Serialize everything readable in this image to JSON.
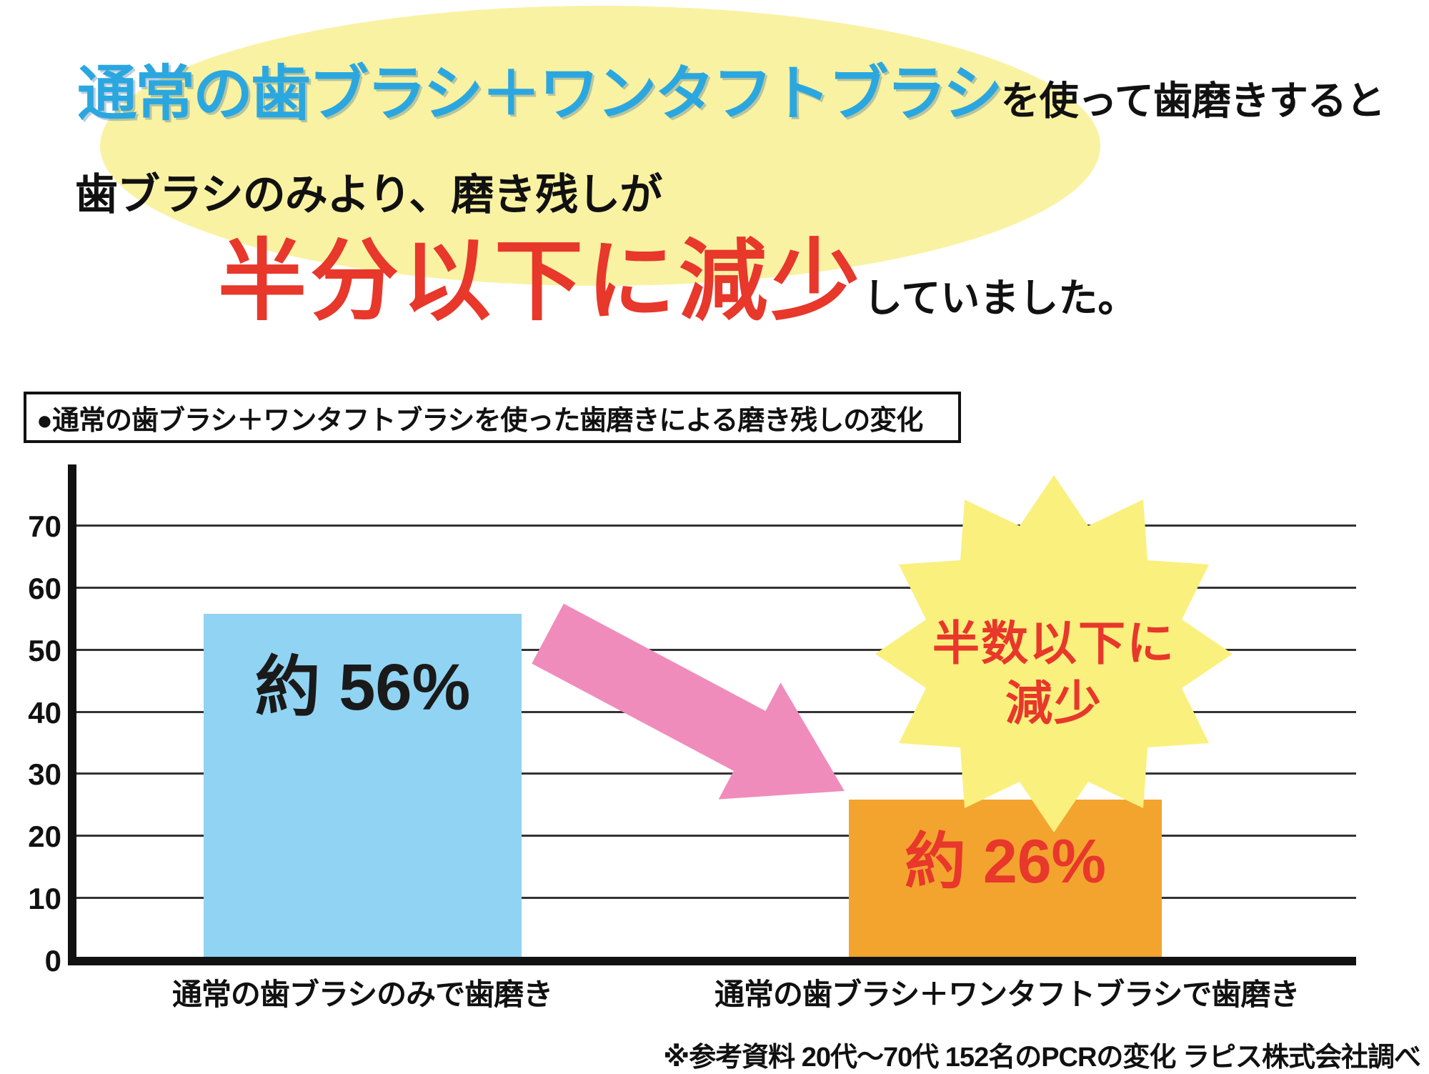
{
  "headline": {
    "line1_blue": "通常の歯ブラシ＋ワンタフトブラシ",
    "line1_black": "を使って歯磨きすると",
    "line2": "歯ブラシのみより、磨き残しが",
    "line3_red": "半分以下に減少",
    "line3_black": "していました。"
  },
  "chart_title": "●通常の歯ブラシ＋ワンタフトブラシを使った歯磨きによる磨き残しの変化",
  "chart_data": {
    "type": "bar",
    "title": "●通常の歯ブラシ＋ワンタフトブラシを使った歯磨きによる磨き残しの変化",
    "categories": [
      "通常の歯ブラシのみで歯磨き",
      "通常の歯ブラシ＋ワンタフトブラシで歯磨き"
    ],
    "values": [
      56,
      26
    ],
    "bar_labels": [
      "約 56%",
      "約 26%"
    ],
    "bar_colors": [
      "#91d3f2",
      "#f2a42f"
    ],
    "bar_label_colors": [
      "#1a1a1a",
      "#e8372b"
    ],
    "yticks": [
      0,
      10,
      20,
      30,
      40,
      50,
      60,
      70
    ],
    "ylim": [
      0,
      80
    ],
    "grid": true,
    "legend": "none",
    "annotation": {
      "line1": "半数以下に",
      "line2": "減少"
    }
  },
  "footnote": "※参考資料 20代～70代 152名のPCRの変化 ラピス株式会社調べ",
  "colors": {
    "highlight_ellipse": "#f9f2a2",
    "headline_blue": "#2ba7e0",
    "emphasis_red": "#e8372b",
    "bar_blue": "#91d3f2",
    "bar_orange": "#f2a42f",
    "arrow_pink": "#f08cbb",
    "starburst_yellow": "#faf07d",
    "gridline": "#333333"
  }
}
